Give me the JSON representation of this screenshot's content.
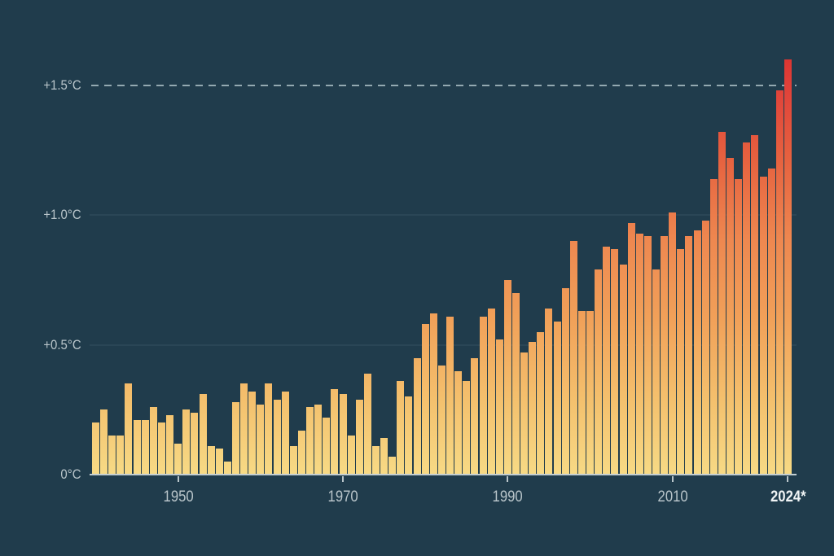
{
  "chart_data": {
    "type": "bar",
    "description": "Annual global temperature anomaly bars from 1940 to 2024, one bar per year, measured in degrees Celsius above the 0°C baseline, with a dashed threshold line at +1.5°C",
    "unit": "°C",
    "start_year": 1940,
    "end_year": 2024,
    "values": [
      0.2,
      0.25,
      0.15,
      0.15,
      0.35,
      0.21,
      0.21,
      0.26,
      0.2,
      0.23,
      0.12,
      0.25,
      0.24,
      0.31,
      0.11,
      0.1,
      0.05,
      0.28,
      0.35,
      0.32,
      0.27,
      0.35,
      0.29,
      0.32,
      0.11,
      0.17,
      0.26,
      0.27,
      0.22,
      0.33,
      0.31,
      0.15,
      0.29,
      0.39,
      0.11,
      0.14,
      0.07,
      0.36,
      0.3,
      0.45,
      0.58,
      0.62,
      0.42,
      0.61,
      0.4,
      0.36,
      0.45,
      0.61,
      0.64,
      0.52,
      0.75,
      0.7,
      0.47,
      0.51,
      0.55,
      0.64,
      0.59,
      0.72,
      0.9,
      0.63,
      0.63,
      0.79,
      0.88,
      0.87,
      0.81,
      0.97,
      0.93,
      0.92,
      0.79,
      0.92,
      1.01,
      0.87,
      0.92,
      0.94,
      0.98,
      1.14,
      1.32,
      1.22,
      1.14,
      1.28,
      1.31,
      1.15,
      1.18,
      1.48,
      1.6
    ],
    "ylim": [
      0,
      1.65
    ],
    "y_ticks": [
      {
        "value": 0,
        "label": "0°C",
        "style": "baseline"
      },
      {
        "value": 0.5,
        "label": "+0.5°C",
        "style": "minor"
      },
      {
        "value": 1.0,
        "label": "+1.0°C",
        "style": "minor"
      },
      {
        "value": 1.5,
        "label": "+1.5°C",
        "style": "dashed"
      }
    ],
    "x_ticks": [
      {
        "year": 1950,
        "label": "1950",
        "emphasis": false
      },
      {
        "year": 1970,
        "label": "1970",
        "emphasis": false
      },
      {
        "year": 1990,
        "label": "1990",
        "emphasis": false
      },
      {
        "year": 2010,
        "label": "2010",
        "emphasis": false
      },
      {
        "year": 2024,
        "label": "2024*",
        "emphasis": true
      }
    ],
    "threshold": {
      "value": 1.5,
      "style": "dashed"
    },
    "legend": null,
    "grid": "horizontal only"
  },
  "colors": {
    "background": "#203c4c",
    "axis_label": "#b9c5ca",
    "axis_label_emphasis": "#f0f4f5",
    "baseline": "#c3ced2",
    "gridline": "#2a4656",
    "threshold_dash": "#93a9b1",
    "bar_gradient_bottom": "#f7da85",
    "bar_gradient_mid": "#ee8850",
    "bar_gradient_top": "#dc3531"
  }
}
